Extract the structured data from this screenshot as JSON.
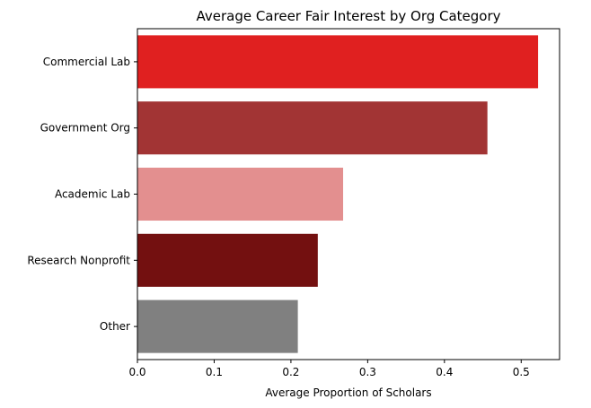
{
  "chart_data": {
    "type": "bar",
    "orientation": "horizontal",
    "title": "Average Career Fair Interest by Org Category",
    "xlabel": "Average Proportion of Scholars",
    "ylabel": "",
    "categories": [
      "Commercial Lab",
      "Government Org",
      "Academic Lab",
      "Research Nonprofit",
      "Other"
    ],
    "values": [
      0.522,
      0.456,
      0.268,
      0.235,
      0.209
    ],
    "colors": [
      "#e02020",
      "#a23434",
      "#e38f8f",
      "#731010",
      "#808080"
    ],
    "xlim": [
      0,
      0.55
    ],
    "xticks": [
      0.0,
      0.1,
      0.2,
      0.3,
      0.4,
      0.5
    ],
    "xtick_labels": [
      "0.0",
      "0.1",
      "0.2",
      "0.3",
      "0.4",
      "0.5"
    ],
    "grid": false,
    "legend": "none"
  }
}
